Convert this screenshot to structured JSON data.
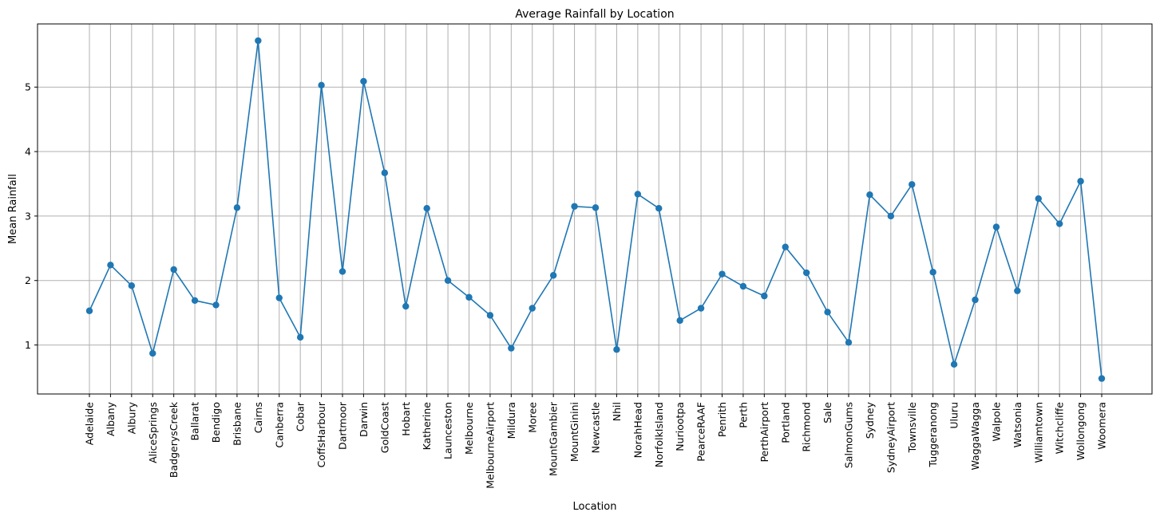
{
  "chart_data": {
    "type": "line",
    "title": "Average Rainfall by Location",
    "xlabel": "Location",
    "ylabel": "Mean Rainfall",
    "grid": true,
    "ylim": [
      0.24,
      5.98
    ],
    "yticks": [
      1,
      2,
      3,
      4,
      5
    ],
    "categories": [
      "Adelaide",
      "Albany",
      "Albury",
      "AliceSprings",
      "BadgerysCreek",
      "Ballarat",
      "Bendigo",
      "Brisbane",
      "Cairns",
      "Canberra",
      "Cobar",
      "CoffsHarbour",
      "Dartmoor",
      "Darwin",
      "GoldCoast",
      "Hobart",
      "Katherine",
      "Launceston",
      "Melbourne",
      "MelbourneAirport",
      "Mildura",
      "Moree",
      "MountGambier",
      "MountGinini",
      "Newcastle",
      "Nhil",
      "NorahHead",
      "NorfolkIsland",
      "Nuriootpa",
      "PearceRAAF",
      "Penrith",
      "Perth",
      "PerthAirport",
      "Portland",
      "Richmond",
      "Sale",
      "SalmonGums",
      "Sydney",
      "SydneyAirport",
      "Townsville",
      "Tuggeranong",
      "Uluru",
      "WaggaWagga",
      "Walpole",
      "Watsonia",
      "Williamtown",
      "Witchcliffe",
      "Wollongong",
      "Woomera"
    ],
    "series": [
      {
        "color": "#1f77b4",
        "marker": "circle",
        "values": [
          1.53,
          2.24,
          1.92,
          0.87,
          2.17,
          1.69,
          1.62,
          3.13,
          5.72,
          1.73,
          1.12,
          5.03,
          2.14,
          5.09,
          3.67,
          1.6,
          3.12,
          2.0,
          1.74,
          1.46,
          0.95,
          1.57,
          2.08,
          3.15,
          3.13,
          0.93,
          3.34,
          3.12,
          1.38,
          1.57,
          2.1,
          1.91,
          1.76,
          2.52,
          2.12,
          1.51,
          1.04,
          3.33,
          3.0,
          3.49,
          2.13,
          0.7,
          1.7,
          2.83,
          1.84,
          3.27,
          2.88,
          3.54,
          0.48
        ]
      }
    ]
  }
}
